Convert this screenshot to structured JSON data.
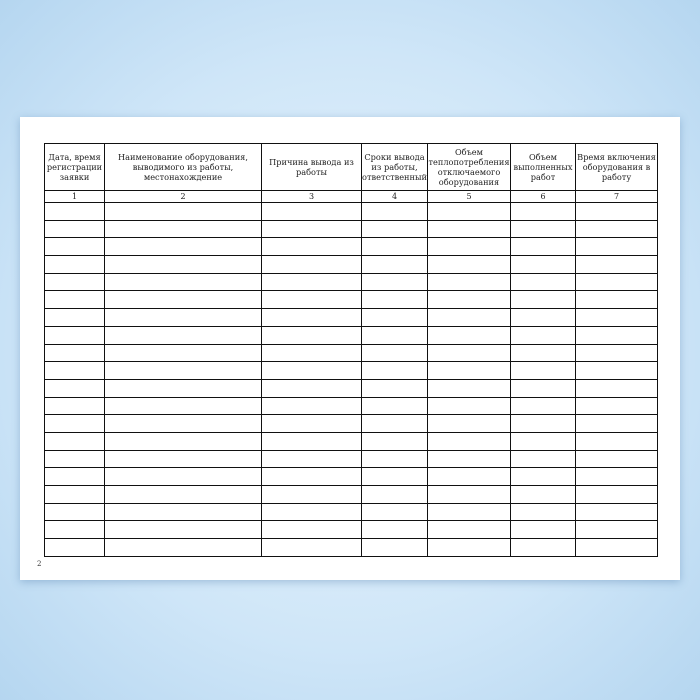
{
  "table": {
    "headers": [
      "Дата, время регистрации заявки",
      "Наименование оборудования, выводимого из работы, местонахождение",
      "Причина вывода из работы",
      "Сроки вывода из работы, ответственный",
      "Объем теплопотребления отключаемого оборудования",
      "Объем выполненных работ",
      "Время включения оборудования в работу"
    ],
    "column_numbers": [
      "1",
      "2",
      "3",
      "4",
      "5",
      "6",
      "7"
    ],
    "empty_rows": 20
  },
  "page_number": "2"
}
